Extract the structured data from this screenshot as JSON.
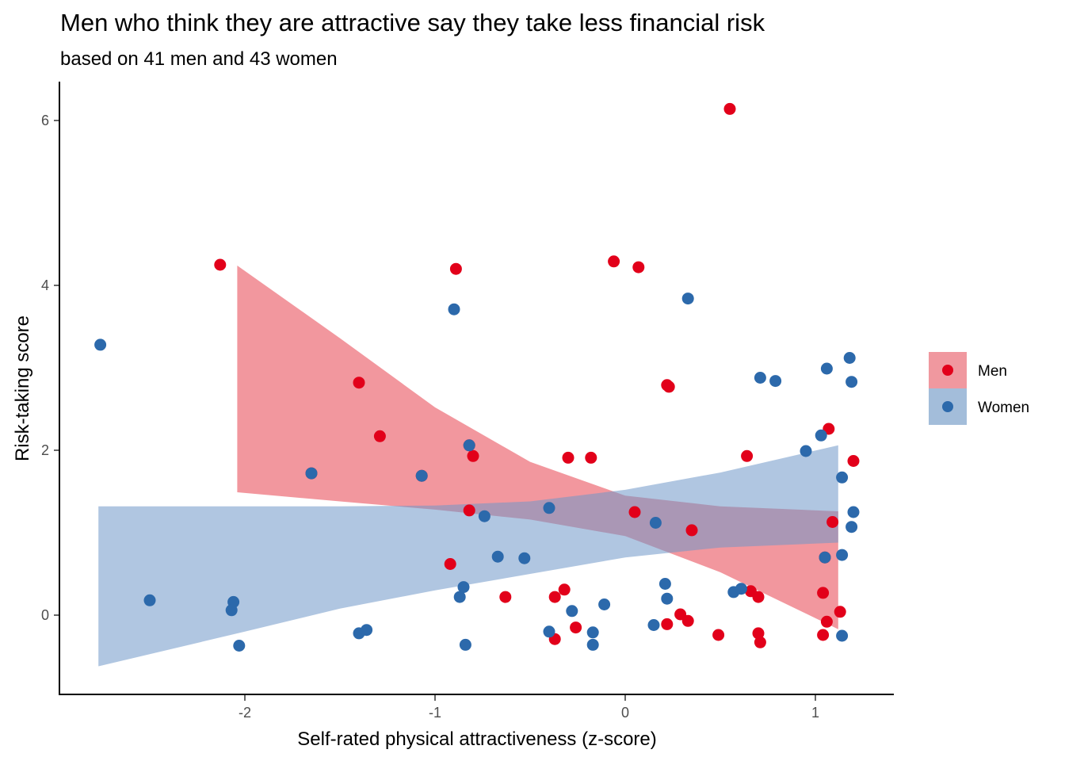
{
  "chart_data": {
    "type": "scatter",
    "title": "Men who think they are attractive say they take less financial risk",
    "subtitle": "based on 41 men and 43 women",
    "xlabel": "Self-rated physical attractiveness (z-score)",
    "ylabel": "Risk-taking score",
    "xlim": [
      -2.85,
      1.42
    ],
    "ylim": [
      -0.95,
      6.5
    ],
    "x_ticks": [
      -2,
      -1,
      0,
      1
    ],
    "x_tick_labels": [
      "-2",
      "-1",
      "0",
      "1"
    ],
    "y_ticks": [
      0,
      2,
      4,
      6
    ],
    "y_tick_labels": [
      "0",
      "2",
      "4",
      "6"
    ],
    "grid": false,
    "legend": {
      "position": "right",
      "entries": [
        {
          "label": "Men",
          "point_color": "#E2001A",
          "band_color": "#F0989F"
        },
        {
          "label": "Women",
          "point_color": "#2C69AB",
          "band_color": "#A3BDDA"
        }
      ]
    },
    "series": [
      {
        "name": "Men",
        "color": "#E2001A",
        "band_color": "#E8414F",
        "band": {
          "x": [
            -2.04,
            -1.5,
            -1.0,
            -0.5,
            0.0,
            0.5,
            1.12
          ],
          "lower": [
            1.49,
            1.38,
            1.28,
            1.16,
            0.96,
            0.52,
            -0.17
          ],
          "upper": [
            4.24,
            3.36,
            2.52,
            1.86,
            1.45,
            1.32,
            1.26
          ]
        },
        "points": [
          {
            "x": -2.13,
            "y": 4.25
          },
          {
            "x": -0.89,
            "y": 4.2
          },
          {
            "x": -0.06,
            "y": 4.29
          },
          {
            "x": 0.07,
            "y": 4.22
          },
          {
            "x": 0.55,
            "y": 6.14
          },
          {
            "x": -1.4,
            "y": 2.82
          },
          {
            "x": -1.29,
            "y": 2.17
          },
          {
            "x": 0.22,
            "y": 2.79
          },
          {
            "x": 0.23,
            "y": 2.77
          },
          {
            "x": -1.65,
            "y": 1.72
          },
          {
            "x": -1.07,
            "y": 1.69
          },
          {
            "x": -0.82,
            "y": 2.06
          },
          {
            "x": -0.8,
            "y": 1.93
          },
          {
            "x": -0.3,
            "y": 1.91
          },
          {
            "x": -0.18,
            "y": 1.91
          },
          {
            "x": 0.64,
            "y": 1.93
          },
          {
            "x": 1.07,
            "y": 2.26
          },
          {
            "x": 1.2,
            "y": 1.87
          },
          {
            "x": -0.82,
            "y": 1.27
          },
          {
            "x": 0.05,
            "y": 1.25
          },
          {
            "x": 0.35,
            "y": 1.03
          },
          {
            "x": 1.09,
            "y": 1.13
          },
          {
            "x": -0.92,
            "y": 0.62
          },
          {
            "x": 1.05,
            "y": 0.7
          },
          {
            "x": -0.63,
            "y": 0.22
          },
          {
            "x": -0.37,
            "y": 0.22
          },
          {
            "x": -0.32,
            "y": 0.31
          },
          {
            "x": -0.37,
            "y": -0.29
          },
          {
            "x": -0.26,
            "y": -0.15
          },
          {
            "x": 0.22,
            "y": -0.11
          },
          {
            "x": 0.29,
            "y": 0.01
          },
          {
            "x": 0.33,
            "y": -0.07
          },
          {
            "x": 0.49,
            "y": -0.24
          },
          {
            "x": 0.66,
            "y": 0.29
          },
          {
            "x": 0.7,
            "y": 0.22
          },
          {
            "x": 0.7,
            "y": -0.22
          },
          {
            "x": 0.71,
            "y": -0.33
          },
          {
            "x": 1.04,
            "y": 0.27
          },
          {
            "x": 1.06,
            "y": -0.08
          },
          {
            "x": 1.04,
            "y": -0.24
          },
          {
            "x": 1.13,
            "y": 0.04
          }
        ]
      },
      {
        "name": "Women",
        "color": "#2C69AB",
        "band_color": "#6F98C8",
        "band": {
          "x": [
            -2.77,
            -2.0,
            -1.5,
            -1.0,
            -0.5,
            0.0,
            0.5,
            1.12
          ],
          "lower": [
            -0.62,
            -0.2,
            0.08,
            0.3,
            0.5,
            0.7,
            0.82,
            0.88
          ],
          "upper": [
            1.32,
            1.32,
            1.32,
            1.33,
            1.38,
            1.52,
            1.73,
            2.06
          ]
        },
        "points": [
          {
            "x": -2.76,
            "y": 3.28
          },
          {
            "x": -2.5,
            "y": 0.18
          },
          {
            "x": -2.06,
            "y": 0.16
          },
          {
            "x": -2.07,
            "y": 0.06
          },
          {
            "x": -2.03,
            "y": -0.37
          },
          {
            "x": -1.4,
            "y": -0.22
          },
          {
            "x": -1.36,
            "y": -0.18
          },
          {
            "x": -0.9,
            "y": 3.71
          },
          {
            "x": -0.82,
            "y": 2.06
          },
          {
            "x": -1.65,
            "y": 1.72
          },
          {
            "x": -1.07,
            "y": 1.69
          },
          {
            "x": -0.74,
            "y": 1.2
          },
          {
            "x": -0.67,
            "y": 0.71
          },
          {
            "x": -0.53,
            "y": 0.69
          },
          {
            "x": -0.4,
            "y": 1.3
          },
          {
            "x": -0.85,
            "y": 0.34
          },
          {
            "x": -0.87,
            "y": 0.22
          },
          {
            "x": -0.84,
            "y": -0.36
          },
          {
            "x": -0.4,
            "y": -0.2
          },
          {
            "x": -0.28,
            "y": 0.05
          },
          {
            "x": -0.11,
            "y": 0.13
          },
          {
            "x": -0.17,
            "y": -0.21
          },
          {
            "x": -0.17,
            "y": -0.36
          },
          {
            "x": 0.15,
            "y": -0.12
          },
          {
            "x": 0.16,
            "y": 1.12
          },
          {
            "x": 0.21,
            "y": 0.38
          },
          {
            "x": 0.22,
            "y": 0.2
          },
          {
            "x": 0.33,
            "y": 3.84
          },
          {
            "x": 0.57,
            "y": 0.28
          },
          {
            "x": 0.61,
            "y": 0.32
          },
          {
            "x": 0.71,
            "y": 2.88
          },
          {
            "x": 0.79,
            "y": 2.84
          },
          {
            "x": 0.95,
            "y": 1.99
          },
          {
            "x": 1.03,
            "y": 2.18
          },
          {
            "x": 1.06,
            "y": 2.99
          },
          {
            "x": 1.18,
            "y": 3.12
          },
          {
            "x": 1.19,
            "y": 2.83
          },
          {
            "x": 1.14,
            "y": 1.67
          },
          {
            "x": 1.2,
            "y": 1.25
          },
          {
            "x": 1.19,
            "y": 1.07
          },
          {
            "x": 1.14,
            "y": 0.73
          },
          {
            "x": 1.14,
            "y": -0.25
          },
          {
            "x": 1.05,
            "y": 0.7
          }
        ]
      }
    ]
  }
}
